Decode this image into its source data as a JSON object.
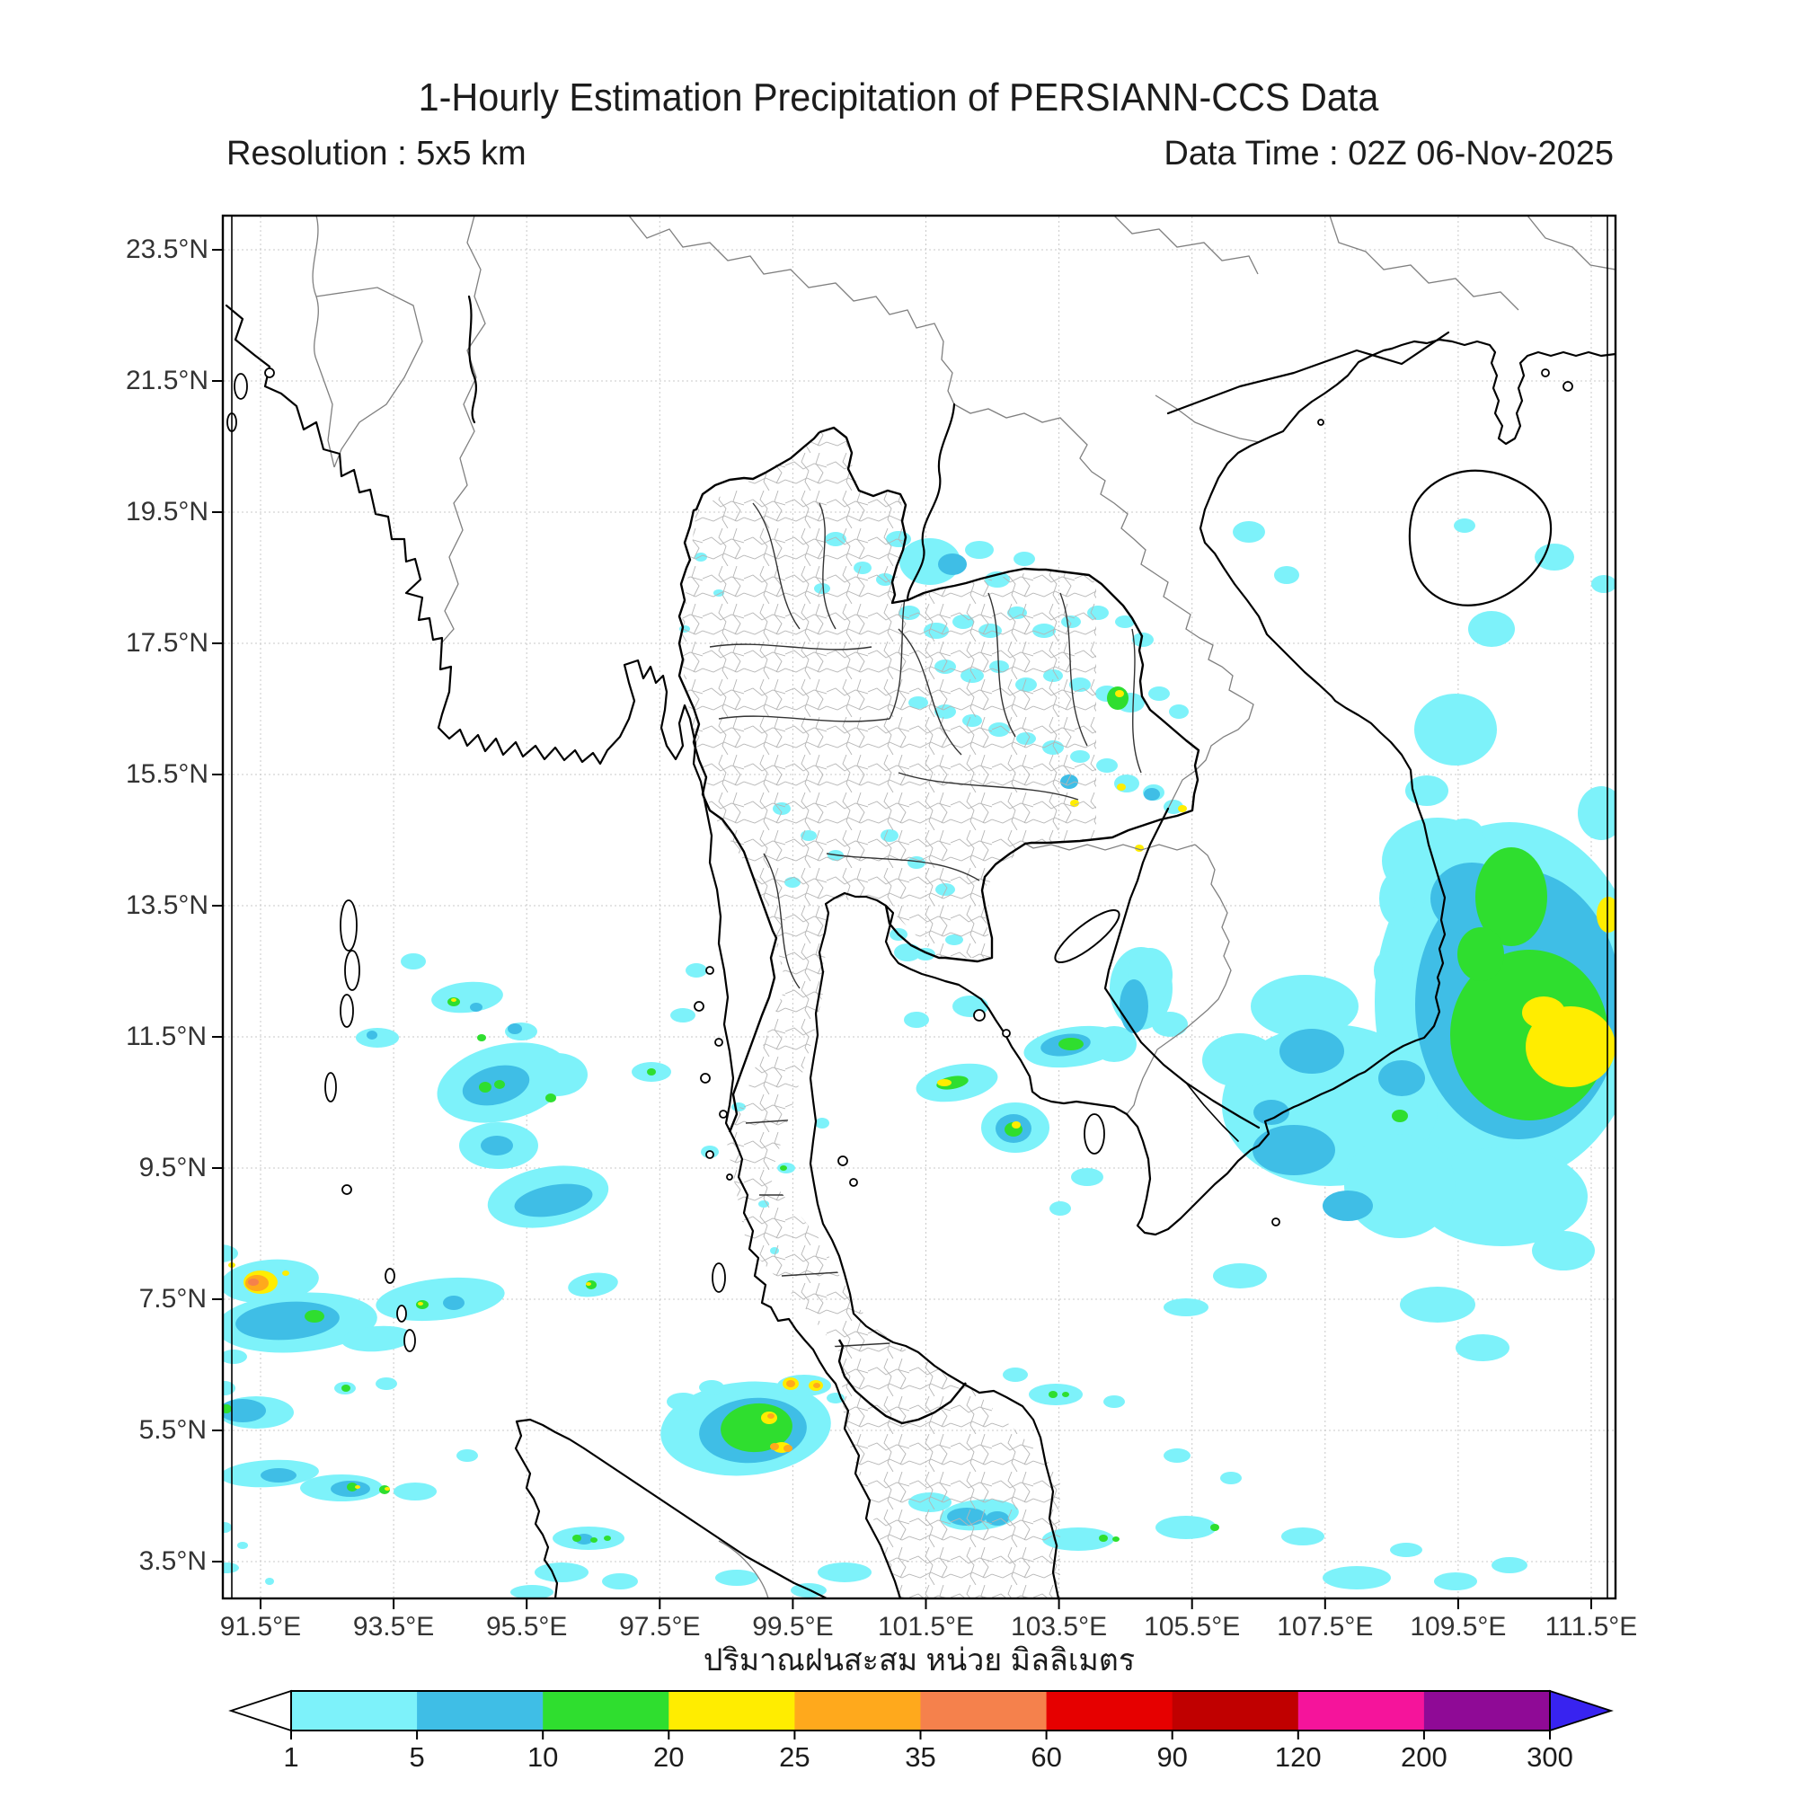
{
  "header": {
    "title": "1-Hourly Estimation Precipitation of PERSIANN-CCS Data",
    "resolution": "Resolution : 5x5 km",
    "data_time": "Data Time : 02Z 06-Nov-2025"
  },
  "caption": "ปริมาณฝนสะสม หน่วย มิลลิเมตร",
  "axes": {
    "lat_ticks": [
      "23.5°N",
      "21.5°N",
      "19.5°N",
      "17.5°N",
      "15.5°N",
      "13.5°N",
      "11.5°N",
      "9.5°N",
      "7.5°N",
      "5.5°N",
      "3.5°N"
    ],
    "lon_ticks": [
      "91.5°E",
      "93.5°E",
      "95.5°E",
      "97.5°E",
      "99.5°E",
      "101.5°E",
      "103.5°E",
      "105.5°E",
      "107.5°E",
      "109.5°E",
      "111.5°E"
    ]
  },
  "colorbar": {
    "labels": [
      "1",
      "5",
      "10",
      "20",
      "25",
      "35",
      "60",
      "90",
      "120",
      "200",
      "300"
    ],
    "segment_colors": [
      "#7DF2FA",
      "#3FBEE6",
      "#2FDE2F",
      "#FFED00",
      "#FFA91C",
      "#F5814C",
      "#E60000",
      "#C00000",
      "#F5149B",
      "#8F0A96"
    ],
    "under_arrow_color": "#ffffff",
    "over_arrow_color": "#3823F0",
    "outline_color": "#000000"
  },
  "precip_levels": {
    "c": "#7DF2FA",
    "b": "#3FBEE6",
    "g": "#2FDE2F",
    "y": "#FFED00",
    "o": "#FFA91C",
    "r": "#F5814C"
  },
  "precip_blobs": [
    [
      1680,
      1115,
      150,
      200,
      0,
      "c"
    ],
    [
      1600,
      958,
      62,
      48,
      0,
      "c"
    ],
    [
      1672,
      1332,
      95,
      55,
      0,
      "c"
    ],
    [
      1558,
      1242,
      42,
      26,
      0,
      "c"
    ],
    [
      1740,
      1392,
      35,
      22,
      0,
      "c"
    ],
    [
      1782,
      905,
      26,
      30,
      0,
      "c"
    ],
    [
      1555,
      1000,
      20,
      30,
      0,
      "c"
    ],
    [
      1545,
      1080,
      16,
      22,
      0,
      "c"
    ],
    [
      1690,
      1118,
      115,
      150,
      0,
      "b"
    ],
    [
      1638,
      1000,
      46,
      40,
      0,
      "b"
    ],
    [
      1702,
      1152,
      88,
      95,
      0,
      "g"
    ],
    [
      1682,
      998,
      40,
      55,
      0,
      "g"
    ],
    [
      1648,
      1062,
      26,
      30,
      0,
      "g"
    ],
    [
      1748,
      1165,
      50,
      45,
      0,
      "y"
    ],
    [
      1718,
      1127,
      24,
      18,
      0,
      "y"
    ],
    [
      1790,
      1018,
      13,
      20,
      0,
      "y"
    ],
    [
      1620,
      812,
      46,
      40,
      0,
      "c"
    ],
    [
      1660,
      700,
      26,
      20,
      0,
      "c"
    ],
    [
      1588,
      880,
      24,
      17,
      0,
      "c"
    ],
    [
      1630,
      925,
      20,
      14,
      0,
      "c"
    ],
    [
      1730,
      620,
      22,
      15,
      0,
      "c"
    ],
    [
      1390,
      592,
      18,
      12,
      0,
      "c"
    ],
    [
      1432,
      640,
      14,
      10,
      0,
      "c"
    ],
    [
      1630,
      585,
      12,
      8,
      0,
      "c"
    ],
    [
      1785,
      650,
      14,
      10,
      0,
      "c"
    ],
    [
      1480,
      1230,
      120,
      90,
      0,
      "c"
    ],
    [
      1558,
      1320,
      62,
      58,
      0,
      "c"
    ],
    [
      1452,
      1120,
      60,
      35,
      0,
      "c"
    ],
    [
      1380,
      1180,
      42,
      30,
      0,
      "c"
    ],
    [
      1270,
      1100,
      35,
      46,
      0,
      "c"
    ],
    [
      1240,
      1162,
      25,
      20,
      0,
      "c"
    ],
    [
      1600,
      1452,
      42,
      20,
      0,
      "c"
    ],
    [
      1650,
      1500,
      30,
      15,
      0,
      "c"
    ],
    [
      1380,
      1420,
      30,
      14,
      0,
      "c"
    ],
    [
      1320,
      1455,
      25,
      10,
      0,
      "c"
    ],
    [
      1440,
      1280,
      46,
      28,
      0,
      "b"
    ],
    [
      1460,
      1170,
      36,
      25,
      0,
      "b"
    ],
    [
      1560,
      1200,
      26,
      20,
      0,
      "b"
    ],
    [
      1500,
      1342,
      28,
      17,
      0,
      "b"
    ],
    [
      1262,
      1120,
      16,
      30,
      0,
      "b"
    ],
    [
      1415,
      1238,
      20,
      14,
      0,
      "b"
    ],
    [
      1558,
      1242,
      9,
      7,
      0,
      "g"
    ],
    [
      1065,
      1205,
      46,
      20,
      -10,
      "c"
    ],
    [
      1060,
      1205,
      18,
      7,
      -10,
      "g"
    ],
    [
      1051,
      1205,
      8,
      4,
      0,
      "y"
    ],
    [
      1130,
      1255,
      38,
      28,
      0,
      "c"
    ],
    [
      1128,
      1256,
      20,
      16,
      0,
      "b"
    ],
    [
      1128,
      1257,
      10,
      8,
      0,
      "g"
    ],
    [
      1131,
      1252,
      5,
      4,
      0,
      "y"
    ],
    [
      1195,
      1165,
      56,
      22,
      -8,
      "c"
    ],
    [
      1186,
      1163,
      28,
      12,
      -8,
      "b"
    ],
    [
      1192,
      1162,
      14,
      7,
      0,
      "g"
    ],
    [
      1280,
      1085,
      25,
      30,
      0,
      "c"
    ],
    [
      1302,
      1140,
      20,
      14,
      0,
      "c"
    ],
    [
      1210,
      1310,
      18,
      10,
      0,
      "c"
    ],
    [
      1180,
      1345,
      12,
      8,
      0,
      "c"
    ],
    [
      1080,
      1120,
      20,
      12,
      0,
      "c"
    ],
    [
      1020,
      1135,
      14,
      9,
      0,
      "c"
    ],
    [
      1010,
      1060,
      15,
      10,
      0,
      "c"
    ],
    [
      915,
      1250,
      8,
      6,
      0,
      "c"
    ],
    [
      1035,
      625,
      34,
      26,
      0,
      "c"
    ],
    [
      1060,
      628,
      16,
      12,
      0,
      "b"
    ],
    [
      1000,
      600,
      14,
      9,
      0,
      "c"
    ],
    [
      1090,
      612,
      16,
      10,
      0,
      "c"
    ],
    [
      1110,
      645,
      14,
      9,
      0,
      "c"
    ],
    [
      1140,
      622,
      12,
      8,
      0,
      "c"
    ],
    [
      930,
      600,
      12,
      8,
      0,
      "c"
    ],
    [
      960,
      632,
      10,
      7,
      0,
      "c"
    ],
    [
      915,
      655,
      9,
      6,
      0,
      "c"
    ],
    [
      985,
      645,
      10,
      7,
      0,
      "c"
    ],
    [
      1012,
      682,
      12,
      8,
      0,
      "c"
    ],
    [
      1042,
      702,
      14,
      9,
      0,
      "c"
    ],
    [
      1072,
      692,
      12,
      8,
      0,
      "c"
    ],
    [
      1102,
      702,
      13,
      8,
      0,
      "c"
    ],
    [
      1132,
      682,
      11,
      7,
      0,
      "c"
    ],
    [
      1162,
      702,
      13,
      8,
      0,
      "c"
    ],
    [
      1192,
      692,
      11,
      7,
      0,
      "c"
    ],
    [
      1222,
      682,
      12,
      8,
      0,
      "c"
    ],
    [
      1252,
      692,
      11,
      7,
      0,
      "c"
    ],
    [
      1272,
      712,
      12,
      8,
      0,
      "c"
    ],
    [
      1052,
      742,
      12,
      8,
      0,
      "c"
    ],
    [
      1082,
      752,
      13,
      8,
      0,
      "c"
    ],
    [
      1112,
      742,
      11,
      7,
      0,
      "c"
    ],
    [
      1142,
      762,
      12,
      8,
      0,
      "c"
    ],
    [
      1172,
      752,
      11,
      7,
      0,
      "c"
    ],
    [
      1202,
      762,
      12,
      8,
      0,
      "c"
    ],
    [
      1232,
      772,
      13,
      9,
      0,
      "c"
    ],
    [
      1258,
      782,
      16,
      11,
      0,
      "c"
    ],
    [
      1290,
      772,
      12,
      8,
      0,
      "c"
    ],
    [
      1312,
      792,
      11,
      8,
      0,
      "c"
    ],
    [
      1244,
      777,
      12,
      13,
      0,
      "g"
    ],
    [
      1246,
      772,
      5,
      4,
      0,
      "y"
    ],
    [
      1022,
      782,
      11,
      7,
      0,
      "c"
    ],
    [
      1052,
      792,
      12,
      8,
      0,
      "c"
    ],
    [
      1082,
      802,
      11,
      7,
      0,
      "c"
    ],
    [
      1112,
      812,
      12,
      8,
      0,
      "c"
    ],
    [
      1142,
      822,
      11,
      7,
      0,
      "c"
    ],
    [
      1172,
      832,
      12,
      8,
      0,
      "c"
    ],
    [
      1202,
      842,
      11,
      7,
      0,
      "c"
    ],
    [
      1232,
      852,
      12,
      8,
      0,
      "c"
    ],
    [
      1254,
      872,
      14,
      10,
      0,
      "c"
    ],
    [
      1284,
      882,
      12,
      9,
      0,
      "c"
    ],
    [
      1306,
      898,
      11,
      8,
      0,
      "c"
    ],
    [
      1190,
      870,
      10,
      8,
      0,
      "b"
    ],
    [
      1282,
      884,
      9,
      7,
      0,
      "b"
    ],
    [
      1196,
      894,
      5,
      4,
      0,
      "y"
    ],
    [
      1248,
      876,
      5,
      4,
      0,
      "y"
    ],
    [
      1316,
      900,
      5,
      4,
      0,
      "y"
    ],
    [
      1268,
      944,
      5,
      4,
      0,
      "y"
    ],
    [
      990,
      930,
      10,
      7,
      0,
      "c"
    ],
    [
      1020,
      960,
      10,
      7,
      0,
      "c"
    ],
    [
      1052,
      990,
      11,
      7,
      0,
      "c"
    ],
    [
      1000,
      1040,
      10,
      7,
      0,
      "c"
    ],
    [
      1030,
      1062,
      11,
      7,
      0,
      "c"
    ],
    [
      1062,
      1046,
      10,
      6,
      0,
      "c"
    ],
    [
      870,
      900,
      10,
      7,
      0,
      "c"
    ],
    [
      900,
      930,
      9,
      6,
      0,
      "c"
    ],
    [
      930,
      952,
      9,
      6,
      0,
      "c"
    ],
    [
      882,
      982,
      9,
      6,
      0,
      "c"
    ],
    [
      780,
      620,
      7,
      5,
      0,
      "c"
    ],
    [
      800,
      660,
      6,
      4,
      0,
      "c"
    ],
    [
      762,
      700,
      6,
      4,
      0,
      "c"
    ],
    [
      520,
      1110,
      40,
      17,
      -5,
      "c"
    ],
    [
      505,
      1115,
      7,
      5,
      0,
      "g"
    ],
    [
      505,
      1113,
      3,
      2,
      0,
      "y"
    ],
    [
      530,
      1121,
      7,
      5,
      0,
      "b"
    ],
    [
      573,
      1145,
      8,
      6,
      0,
      "b"
    ],
    [
      580,
      1148,
      18,
      10,
      0,
      "c"
    ],
    [
      536,
      1155,
      5,
      4,
      0,
      "g"
    ],
    [
      460,
      1070,
      14,
      9,
      0,
      "c"
    ],
    [
      420,
      1155,
      24,
      11,
      0,
      "c"
    ],
    [
      414,
      1152,
      6,
      5,
      0,
      "b"
    ],
    [
      560,
      1205,
      75,
      42,
      -14,
      "c"
    ],
    [
      552,
      1208,
      38,
      21,
      -14,
      "b"
    ],
    [
      540,
      1210,
      7,
      6,
      0,
      "g"
    ],
    [
      556,
      1207,
      6,
      5,
      0,
      "g"
    ],
    [
      620,
      1196,
      34,
      24,
      0,
      "c"
    ],
    [
      613,
      1222,
      6,
      5,
      0,
      "g"
    ],
    [
      555,
      1275,
      44,
      26,
      0,
      "c"
    ],
    [
      553,
      1275,
      18,
      11,
      0,
      "b"
    ],
    [
      610,
      1332,
      68,
      33,
      -10,
      "c"
    ],
    [
      616,
      1336,
      44,
      17,
      -10,
      "b"
    ],
    [
      725,
      1193,
      22,
      11,
      0,
      "c"
    ],
    [
      725,
      1193,
      5,
      4,
      0,
      "g"
    ],
    [
      760,
      1130,
      14,
      8,
      0,
      "c"
    ],
    [
      775,
      1080,
      12,
      8,
      0,
      "c"
    ],
    [
      790,
      1282,
      10,
      7,
      0,
      "c"
    ],
    [
      822,
      1232,
      8,
      5,
      0,
      "c"
    ],
    [
      875,
      1300,
      10,
      6,
      0,
      "c"
    ],
    [
      872,
      1300,
      4,
      3,
      0,
      "g"
    ],
    [
      850,
      1340,
      6,
      4,
      0,
      "c"
    ],
    [
      862,
      1392,
      5,
      4,
      0,
      "c"
    ],
    [
      660,
      1430,
      28,
      13,
      -8,
      "c"
    ],
    [
      658,
      1430,
      6,
      5,
      0,
      "g"
    ],
    [
      655,
      1429,
      3,
      2,
      0,
      "y"
    ],
    [
      490,
      1446,
      72,
      23,
      -6,
      "c"
    ],
    [
      505,
      1450,
      12,
      8,
      0,
      "b"
    ],
    [
      470,
      1452,
      7,
      5,
      0,
      "g"
    ],
    [
      468,
      1451,
      3,
      2,
      0,
      "y"
    ],
    [
      300,
      1426,
      55,
      24,
      -5,
      "c"
    ],
    [
      290,
      1427,
      19,
      13,
      0,
      "y"
    ],
    [
      286,
      1428,
      13,
      9,
      0,
      "o"
    ],
    [
      282,
      1427,
      6,
      4,
      0,
      "r"
    ],
    [
      318,
      1417,
      4,
      3,
      0,
      "y"
    ],
    [
      258,
      1408,
      4,
      3,
      0,
      "y"
    ],
    [
      330,
      1472,
      90,
      33,
      -4,
      "c"
    ],
    [
      320,
      1470,
      58,
      21,
      -4,
      "b"
    ],
    [
      350,
      1465,
      11,
      7,
      0,
      "g"
    ],
    [
      420,
      1490,
      40,
      14,
      -4,
      "c"
    ],
    [
      384,
      1545,
      12,
      7,
      0,
      "c"
    ],
    [
      385,
      1545,
      5,
      4,
      0,
      "g"
    ],
    [
      430,
      1540,
      12,
      7,
      0,
      "c"
    ],
    [
      245,
      1395,
      20,
      10,
      0,
      "c"
    ],
    [
      260,
      1510,
      15,
      8,
      0,
      "c"
    ],
    [
      250,
      1545,
      12,
      8,
      0,
      "c"
    ],
    [
      285,
      1572,
      42,
      18,
      0,
      "c"
    ],
    [
      270,
      1570,
      26,
      13,
      0,
      "b"
    ],
    [
      252,
      1568,
      6,
      5,
      0,
      "g"
    ],
    [
      300,
      1640,
      55,
      15,
      -3,
      "c"
    ],
    [
      310,
      1642,
      20,
      8,
      0,
      "b"
    ],
    [
      380,
      1656,
      46,
      15,
      0,
      "c"
    ],
    [
      390,
      1657,
      22,
      9,
      0,
      "b"
    ],
    [
      392,
      1655,
      6,
      5,
      0,
      "g"
    ],
    [
      398,
      1655,
      3,
      2,
      0,
      "y"
    ],
    [
      428,
      1658,
      6,
      5,
      0,
      "g"
    ],
    [
      431,
      1657,
      3,
      2,
      0,
      "y"
    ],
    [
      462,
      1660,
      24,
      10,
      0,
      "c"
    ],
    [
      250,
      1700,
      8,
      6,
      0,
      "c"
    ],
    [
      270,
      1720,
      6,
      4,
      0,
      "c"
    ],
    [
      252,
      1745,
      14,
      6,
      0,
      "c"
    ],
    [
      300,
      1760,
      5,
      4,
      0,
      "c"
    ],
    [
      520,
      1620,
      12,
      7,
      0,
      "c"
    ],
    [
      830,
      1590,
      95,
      52,
      -5,
      "c"
    ],
    [
      838,
      1592,
      60,
      36,
      -5,
      "b"
    ],
    [
      842,
      1589,
      40,
      27,
      -5,
      "g"
    ],
    [
      856,
      1578,
      9,
      7,
      0,
      "y"
    ],
    [
      858,
      1576,
      4,
      3,
      0,
      "o"
    ],
    [
      870,
      1611,
      10,
      6,
      0,
      "y"
    ],
    [
      862,
      1610,
      5,
      4,
      0,
      "o"
    ],
    [
      877,
      1612,
      5,
      4,
      0,
      "o"
    ],
    [
      760,
      1560,
      18,
      10,
      0,
      "c"
    ],
    [
      792,
      1544,
      14,
      8,
      0,
      "c"
    ],
    [
      930,
      1556,
      10,
      6,
      0,
      "c"
    ],
    [
      895,
      1542,
      30,
      12,
      0,
      "c"
    ],
    [
      880,
      1540,
      9,
      7,
      0,
      "y"
    ],
    [
      880,
      1540,
      5,
      4,
      0,
      "o"
    ],
    [
      908,
      1542,
      8,
      6,
      0,
      "y"
    ],
    [
      909,
      1542,
      4,
      3,
      0,
      "o"
    ],
    [
      655,
      1712,
      40,
      13,
      0,
      "c"
    ],
    [
      650,
      1713,
      10,
      6,
      0,
      "b"
    ],
    [
      642,
      1712,
      5,
      4,
      0,
      "g"
    ],
    [
      661,
      1714,
      4,
      3,
      0,
      "g"
    ],
    [
      676,
      1712,
      4,
      3,
      0,
      "g"
    ],
    [
      625,
      1750,
      30,
      11,
      0,
      "c"
    ],
    [
      690,
      1760,
      20,
      9,
      0,
      "c"
    ],
    [
      592,
      1772,
      24,
      8,
      0,
      "c"
    ],
    [
      820,
      1756,
      24,
      9,
      0,
      "c"
    ],
    [
      940,
      1750,
      30,
      11,
      0,
      "c"
    ],
    [
      900,
      1770,
      20,
      8,
      0,
      "c"
    ],
    [
      1090,
      1686,
      44,
      17,
      -5,
      "c"
    ],
    [
      1076,
      1688,
      22,
      10,
      0,
      "b"
    ],
    [
      1110,
      1690,
      13,
      8,
      0,
      "b"
    ],
    [
      1035,
      1672,
      24,
      11,
      0,
      "c"
    ],
    [
      1200,
      1713,
      40,
      13,
      0,
      "c"
    ],
    [
      1228,
      1712,
      5,
      4,
      0,
      "g"
    ],
    [
      1242,
      1713,
      4,
      3,
      0,
      "g"
    ],
    [
      1320,
      1700,
      34,
      13,
      0,
      "c"
    ],
    [
      1352,
      1700,
      5,
      4,
      0,
      "g"
    ],
    [
      1450,
      1710,
      24,
      10,
      0,
      "c"
    ],
    [
      1510,
      1756,
      38,
      13,
      0,
      "c"
    ],
    [
      1565,
      1725,
      18,
      8,
      0,
      "c"
    ],
    [
      1620,
      1760,
      24,
      10,
      0,
      "c"
    ],
    [
      1680,
      1742,
      20,
      9,
      0,
      "c"
    ],
    [
      1310,
      1620,
      15,
      8,
      0,
      "c"
    ],
    [
      1370,
      1645,
      12,
      7,
      0,
      "c"
    ],
    [
      1175,
      1552,
      30,
      12,
      0,
      "c"
    ],
    [
      1172,
      1552,
      5,
      4,
      0,
      "g"
    ],
    [
      1186,
      1552,
      4,
      3,
      0,
      "g"
    ],
    [
      1130,
      1530,
      14,
      8,
      0,
      "c"
    ],
    [
      1240,
      1560,
      12,
      7,
      0,
      "c"
    ]
  ]
}
